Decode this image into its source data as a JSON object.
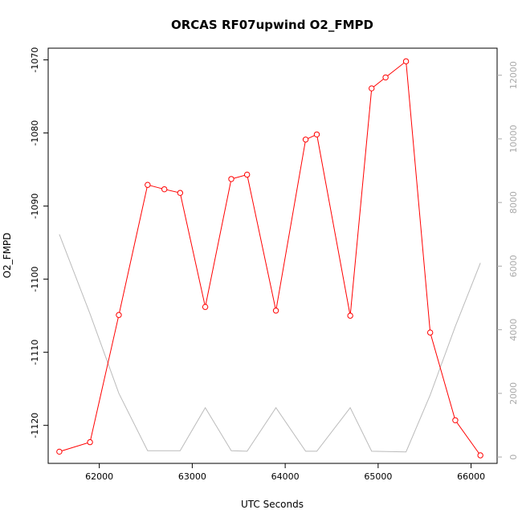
{
  "chart_data": {
    "type": "line",
    "title": "ORCAS RF07upwind O2_FMPD",
    "xlabel": "UTC Seconds",
    "ylabel": "O2_FMPD",
    "xlim": [
      61450,
      66280
    ],
    "ylim": [
      -1125.2,
      -1068.4
    ],
    "y2lim": [
      -200,
      12850
    ],
    "x_ticks": [
      62000,
      63000,
      64000,
      65000,
      66000
    ],
    "x_tick_labels": [
      "62000",
      "63000",
      "64000",
      "65000",
      "66000"
    ],
    "y_ticks": [
      -1120,
      -1110,
      -1100,
      -1090,
      -1080,
      -1070
    ],
    "y_tick_labels": [
      "-1120",
      "-1110",
      "-1100",
      "-1090",
      "-1080",
      "-1070"
    ],
    "y2_ticks": [
      0,
      2000,
      4000,
      6000,
      8000,
      10000,
      12000
    ],
    "y2_tick_labels": [
      "0",
      "2000",
      "4000",
      "6000",
      "8000",
      "10000",
      "12000"
    ],
    "grid": false,
    "series": [
      {
        "color": "#ff0000",
        "axis": "left",
        "markers": "open-circle",
        "x": [
          61570,
          61900,
          62210,
          62520,
          62700,
          62870,
          63140,
          63420,
          63590,
          63900,
          64220,
          64340,
          64700,
          64930,
          65080,
          65300,
          65560,
          65830,
          66100
        ],
        "y": [
          -1123.6,
          -1122.3,
          -1104.9,
          -1087.1,
          -1087.7,
          -1088.2,
          -1103.8,
          -1086.3,
          -1085.7,
          -1104.3,
          -1080.9,
          -1080.2,
          -1105.0,
          -1073.9,
          -1072.4,
          -1070.2,
          -1107.3,
          -1119.3,
          -1124.1
        ]
      },
      {
        "color": "#bbbbbb",
        "axis": "right",
        "markers": "none",
        "x": [
          61570,
          61900,
          62210,
          62520,
          62870,
          63140,
          63420,
          63590,
          63900,
          64220,
          64340,
          64700,
          64930,
          65300,
          65560,
          65830,
          66100
        ],
        "y": [
          7000,
          4500,
          2000,
          200,
          200,
          1550,
          200,
          180,
          1550,
          180,
          180,
          1550,
          180,
          160,
          1950,
          4100,
          6100
        ]
      }
    ]
  }
}
